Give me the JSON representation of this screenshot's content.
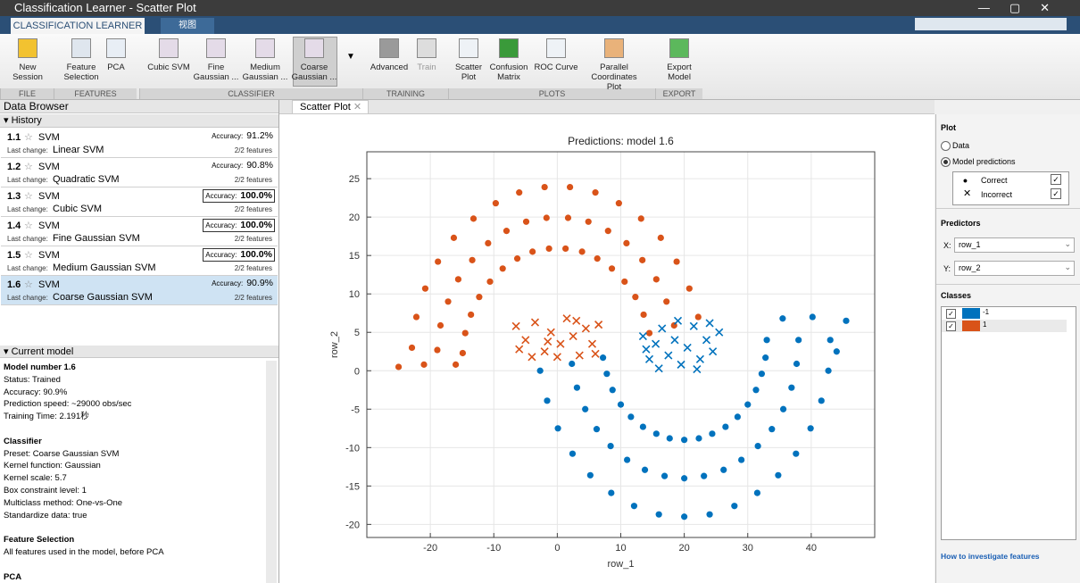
{
  "window": {
    "title": "Classification Learner - Scatter Plot"
  },
  "tabs": [
    "CLASSIFICATION LEARNER",
    "视图"
  ],
  "toolstrip": {
    "groups": [
      {
        "label": "FILE",
        "buttons": [
          {
            "lines": [
              "New",
              "Session"
            ],
            "color": "#f2c230"
          }
        ]
      },
      {
        "label": "FEATURES",
        "buttons": [
          {
            "lines": [
              "Feature",
              "Selection"
            ],
            "color": "#dfe6ee"
          },
          {
            "lines": [
              "PCA"
            ],
            "color": "#e8eef5"
          }
        ]
      },
      {
        "label": "CLASSIFIER",
        "buttons": [
          {
            "lines": [
              "Cubic SVM"
            ],
            "color": "#e4dbe8"
          },
          {
            "lines": [
              "Fine",
              "Gaussian ..."
            ],
            "color": "#e4dbe8"
          },
          {
            "lines": [
              "Medium",
              "Gaussian ..."
            ],
            "color": "#e4dbe8"
          },
          {
            "lines": [
              "Coarse",
              "Gaussian ..."
            ],
            "color": "#e4dbe8",
            "selected": true
          }
        ]
      },
      {
        "label": "TRAINING",
        "buttons": [
          {
            "lines": [
              "Advanced"
            ],
            "color": "#9a9a9a"
          },
          {
            "lines": [
              "Train"
            ],
            "color": "#dddddd",
            "disabled": true
          }
        ]
      },
      {
        "label": "PLOTS",
        "buttons": [
          {
            "lines": [
              "Scatter",
              "Plot"
            ],
            "color": "#eef2f6"
          },
          {
            "lines": [
              "Confusion",
              "Matrix"
            ],
            "color": "#3a9a3a"
          },
          {
            "lines": [
              "ROC Curve"
            ],
            "color": "#eef2f6"
          },
          {
            "lines": [
              "Parallel",
              "Coordinates Plot"
            ],
            "color": "#e9b27a"
          }
        ]
      },
      {
        "label": "EXPORT",
        "buttons": [
          {
            "lines": [
              "Export",
              "Model"
            ],
            "color": "#5cb85c"
          }
        ]
      }
    ]
  },
  "data_browser": {
    "title": "Data Browser",
    "history_title": "History",
    "accuracy_label": "Accuracy:",
    "change_label": "Last change:",
    "history": [
      {
        "id": "1.1",
        "name": "SVM",
        "accuracy": "91.2%",
        "change": "Linear SVM",
        "features": "2/2 features"
      },
      {
        "id": "1.2",
        "name": "SVM",
        "accuracy": "90.8%",
        "change": "Quadratic SVM",
        "features": "2/2 features"
      },
      {
        "id": "1.3",
        "name": "SVM",
        "accuracy": "100.0%",
        "change": "Cubic SVM",
        "features": "2/2 features",
        "best": true
      },
      {
        "id": "1.4",
        "name": "SVM",
        "accuracy": "100.0%",
        "change": "Fine Gaussian SVM",
        "features": "2/2 features",
        "best": true
      },
      {
        "id": "1.5",
        "name": "SVM",
        "accuracy": "100.0%",
        "change": "Medium Gaussian SVM",
        "features": "2/2 features",
        "best": true
      },
      {
        "id": "1.6",
        "name": "SVM",
        "accuracy": "90.9%",
        "change": "Coarse Gaussian SVM",
        "features": "2/2 features",
        "selected": true
      }
    ],
    "current_model_title": "Current model",
    "current_model": [
      {
        "heading": "Model number 1.6",
        "lines": [
          "Status: Trained",
          "Accuracy: 90.9%",
          "Prediction speed: ~29000 obs/sec",
          "Training Time: 2.191秒"
        ]
      },
      {
        "heading": "Classifier",
        "lines": [
          "Preset: Coarse Gaussian SVM",
          "Kernel function: Gaussian",
          "Kernel scale: 5.7",
          "Box constraint level: 1",
          "Multiclass method: One-vs-One",
          "Standardize data: true"
        ]
      },
      {
        "heading": "Feature Selection",
        "lines": [
          "All features used in the model, before PCA"
        ]
      },
      {
        "heading": "PCA",
        "lines": []
      }
    ]
  },
  "plot_tab": "Scatter Plot",
  "chart_data": {
    "type": "scatter",
    "title": "Predictions: model 1.6",
    "x_label": "row_1",
    "y_label": "row_2",
    "xlim": [
      -30,
      50
    ],
    "ylim": [
      -21.7,
      28.5
    ],
    "xticks": [
      -20,
      -10,
      0,
      10,
      20,
      30,
      40
    ],
    "yticks": [
      -20,
      -15,
      -10,
      -5,
      0,
      5,
      10,
      15,
      20,
      25
    ],
    "grid": true,
    "series": [
      {
        "color": "#D95319",
        "marker": "dot",
        "x": [
          14.5,
          18.4,
          22.2,
          13.6,
          17.2,
          20.8,
          12.3,
          15.6,
          18.8,
          10.6,
          13.4,
          16.3,
          8.6,
          10.9,
          13.2,
          6.3,
          8.0,
          9.7,
          3.9,
          4.9,
          6.0,
          1.3,
          1.7,
          2.0,
          -1.3,
          -1.7,
          -2.0,
          -3.9,
          -4.9,
          -6.0,
          -6.3,
          -8.0,
          -9.7,
          -8.6,
          -10.9,
          -13.2,
          -10.6,
          -13.4,
          -16.3,
          -12.3,
          -15.6,
          -18.8,
          -13.6,
          -17.2,
          -20.8,
          -14.5,
          -18.4,
          -22.2,
          -14.9,
          -18.9,
          -22.9,
          -25.0,
          -21.0,
          -16.0
        ],
        "values": [
          4.9,
          5.9,
          7.0,
          7.3,
          9.0,
          10.7,
          9.6,
          11.9,
          14.2,
          11.6,
          14.4,
          17.3,
          13.3,
          16.6,
          19.8,
          14.6,
          18.2,
          21.8,
          15.5,
          19.4,
          23.2,
          15.9,
          19.9,
          23.9,
          15.9,
          19.9,
          23.9,
          15.5,
          19.4,
          23.2,
          14.6,
          18.2,
          21.8,
          13.3,
          16.6,
          19.8,
          11.6,
          14.4,
          17.3,
          9.6,
          11.9,
          14.2,
          7.3,
          9.0,
          10.7,
          4.9,
          5.9,
          7.0,
          2.3,
          2.7,
          3.0,
          0.5,
          0.8,
          0.8
        ]
      },
      {
        "color": "#0072BD",
        "marker": "dot",
        "x": [
          7.2,
          2.3,
          -2.7,
          7.8,
          3.1,
          -1.6,
          8.7,
          4.4,
          0.1,
          10.0,
          6.2,
          2.4,
          11.6,
          8.4,
          5.2,
          13.5,
          11.0,
          8.5,
          15.6,
          13.8,
          12.1,
          17.7,
          16.9,
          16.0,
          20.0,
          20.0,
          20.0,
          22.3,
          23.1,
          24.0,
          24.4,
          26.2,
          27.9,
          26.5,
          29.0,
          31.5,
          28.4,
          31.6,
          34.8,
          30.0,
          33.8,
          37.6,
          31.3,
          35.6,
          39.9,
          32.2,
          36.9,
          41.6,
          32.8,
          37.7,
          42.7,
          33.0,
          38.0,
          43.0,
          35.5,
          40.2,
          45.5,
          44.0
        ],
        "values": [
          1.7,
          0.9,
          0.0,
          -0.4,
          -2.2,
          -3.9,
          -2.5,
          -5.0,
          -7.5,
          -4.4,
          -7.6,
          -10.8,
          -6.0,
          -9.8,
          -13.6,
          -7.3,
          -11.6,
          -15.9,
          -8.2,
          -12.9,
          -17.6,
          -8.8,
          -13.7,
          -18.7,
          -9.0,
          -14.0,
          -19.0,
          -8.8,
          -13.7,
          -18.7,
          -8.2,
          -12.9,
          -17.6,
          -7.3,
          -11.6,
          -15.9,
          -6.0,
          -9.8,
          -13.6,
          -4.4,
          -7.6,
          -10.8,
          -2.5,
          -5.0,
          -7.5,
          -0.4,
          -2.2,
          -3.9,
          1.7,
          0.9,
          0.0,
          4.0,
          4.0,
          4.0,
          6.8,
          7.0,
          6.5,
          2.5
        ]
      },
      {
        "color": "#D95319",
        "marker": "x",
        "x": [
          -6.5,
          -5,
          -3.5,
          -2,
          -1,
          0.5,
          1.5,
          2.5,
          3.5,
          4.5,
          5.5,
          6.5,
          -6,
          -4,
          0,
          6,
          3,
          -1.5
        ],
        "values": [
          5.8,
          4,
          6.3,
          2.5,
          5,
          3.5,
          6.8,
          4.5,
          2,
          5.5,
          3.5,
          6,
          2.8,
          1.8,
          1.8,
          2.2,
          6.5,
          3.8
        ]
      },
      {
        "color": "#0072BD",
        "marker": "x",
        "x": [
          13.5,
          14.5,
          15.5,
          16.5,
          17.5,
          18.5,
          19.5,
          20.5,
          21.5,
          22.5,
          23.5,
          24.5,
          25.5,
          19,
          16,
          22,
          24,
          14
        ],
        "values": [
          4.5,
          1.5,
          3.5,
          5.5,
          2,
          4,
          0.8,
          3,
          5.8,
          1.5,
          4,
          2.5,
          5,
          6.5,
          0.3,
          0.2,
          6.2,
          2.8
        ]
      }
    ]
  },
  "right_panel": {
    "plot_title": "Plot",
    "options": [
      "Data",
      "Model predictions"
    ],
    "markers": [
      "Correct",
      "Incorrect"
    ],
    "predictors_title": "Predictors",
    "x_label": "X:",
    "x_value": "row_1",
    "y_label": "Y:",
    "y_value": "row_2",
    "classes_title": "Classes",
    "classes": [
      {
        "name": "-1",
        "color": "#0072BD"
      },
      {
        "name": "1",
        "color": "#D95319"
      }
    ],
    "link": "How to investigate features"
  }
}
